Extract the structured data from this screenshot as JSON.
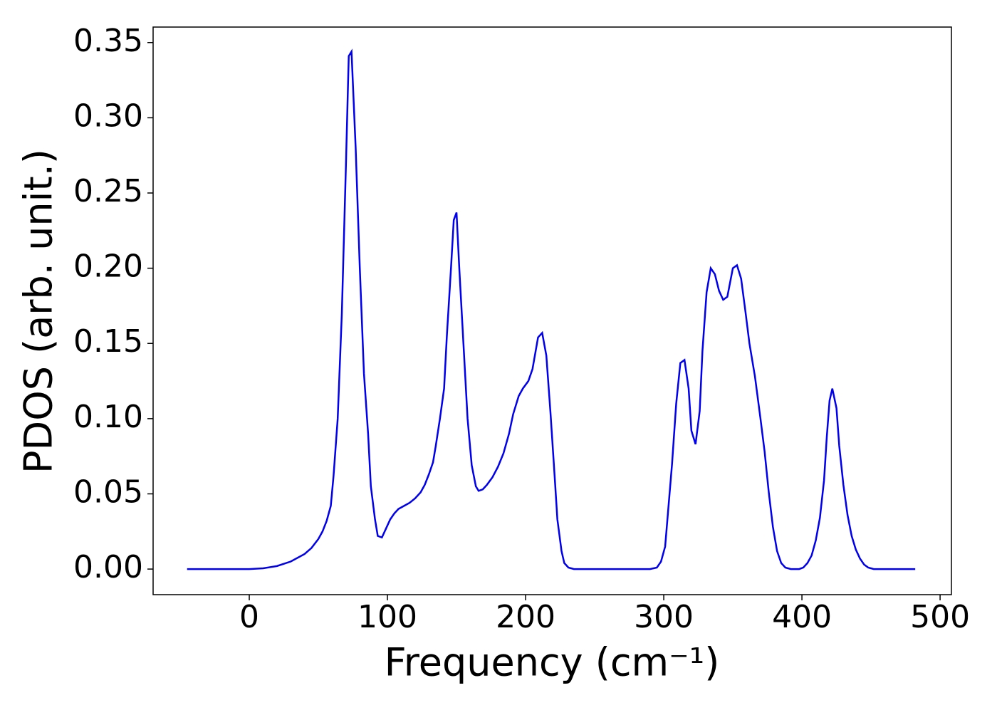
{
  "chart_data": {
    "type": "line",
    "xlabel": "Frequency (cm⁻¹)",
    "ylabel": "PDOS (arb. unit.)",
    "x": [
      -45,
      0,
      10,
      20,
      30,
      40,
      45,
      50,
      53,
      56,
      59,
      61,
      64,
      67,
      70,
      72,
      74,
      77,
      80,
      83,
      86,
      88,
      91,
      93,
      96,
      99,
      102,
      105,
      108,
      112,
      116,
      120,
      124,
      127,
      130,
      133,
      135,
      138,
      141,
      143,
      146,
      148,
      150,
      152,
      155,
      158,
      161,
      164,
      166,
      169,
      172,
      176,
      180,
      184,
      188,
      191,
      195,
      198,
      202,
      205,
      209,
      212,
      215,
      218,
      221,
      223,
      226,
      228,
      231,
      235,
      290,
      295,
      298,
      301,
      303,
      306,
      309,
      312,
      315,
      318,
      320,
      323,
      326,
      328,
      331,
      334,
      337,
      340,
      343,
      346,
      350,
      353,
      356,
      359,
      362,
      366,
      370,
      373,
      376,
      379,
      382,
      385,
      388,
      392,
      398,
      401,
      404,
      407,
      410,
      413,
      416,
      418,
      420,
      422,
      425,
      427,
      430,
      433,
      436,
      439,
      442,
      445,
      448,
      452,
      482
    ],
    "series": [
      {
        "color": "#0000ee",
        "values": [
          0,
          0,
          0.0005,
          0.002,
          0.005,
          0.01,
          0.014,
          0.02,
          0.025,
          0.032,
          0.042,
          0.062,
          0.1,
          0.17,
          0.27,
          0.341,
          0.344,
          0.28,
          0.2,
          0.13,
          0.09,
          0.055,
          0.033,
          0.022,
          0.021,
          0.027,
          0.033,
          0.037,
          0.04,
          0.042,
          0.044,
          0.047,
          0.051,
          0.056,
          0.063,
          0.071,
          0.082,
          0.1,
          0.12,
          0.155,
          0.2,
          0.232,
          0.237,
          0.2,
          0.15,
          0.1,
          0.069,
          0.055,
          0.052,
          0.053,
          0.056,
          0.061,
          0.068,
          0.077,
          0.09,
          0.103,
          0.115,
          0.12,
          0.125,
          0.133,
          0.154,
          0.157,
          0.142,
          0.104,
          0.062,
          0.033,
          0.012,
          0.004,
          0.001,
          0,
          0,
          0.001,
          0.005,
          0.015,
          0.037,
          0.07,
          0.11,
          0.137,
          0.139,
          0.12,
          0.092,
          0.083,
          0.105,
          0.145,
          0.184,
          0.2,
          0.196,
          0.185,
          0.179,
          0.181,
          0.2,
          0.202,
          0.193,
          0.172,
          0.15,
          0.128,
          0.1,
          0.078,
          0.051,
          0.028,
          0.012,
          0.004,
          0.001,
          0,
          0,
          0.001,
          0.004,
          0.009,
          0.019,
          0.034,
          0.059,
          0.088,
          0.112,
          0.12,
          0.107,
          0.082,
          0.056,
          0.036,
          0.022,
          0.013,
          0.007,
          0.003,
          0.001,
          0,
          0
        ]
      }
    ],
    "xlim": [
      -69.6,
      508.2
    ],
    "xticks": [
      0,
      100,
      200,
      300,
      400,
      500
    ],
    "ylim": [
      -0.017,
      0.3603
    ],
    "yticks": [
      {
        "value": 0,
        "label": "0.00"
      },
      {
        "value": 0.05,
        "label": "0.05"
      },
      {
        "value": 0.1,
        "label": "0.10"
      },
      {
        "value": 0.15,
        "label": "0.15"
      },
      {
        "value": 0.2,
        "label": "0.20"
      },
      {
        "value": 0.25,
        "label": "0.25"
      },
      {
        "value": 0.3,
        "label": "0.30"
      },
      {
        "value": 0.35,
        "label": "0.35"
      }
    ]
  }
}
